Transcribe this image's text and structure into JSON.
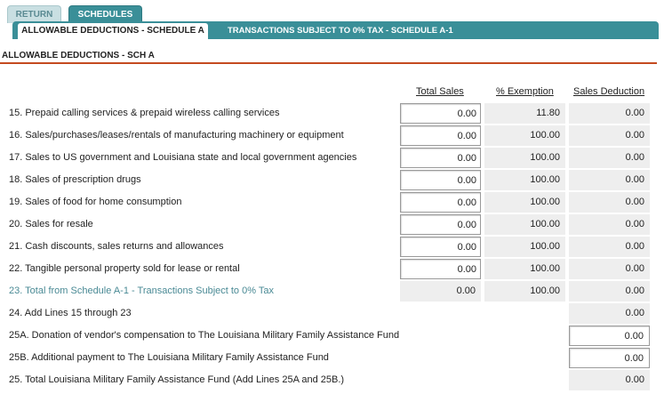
{
  "tabs": {
    "return_label": "RETURN",
    "schedules_label": "SCHEDULES"
  },
  "subtabs": {
    "active_label": "ALLOWABLE DEDUCTIONS - SCHEDULE A",
    "inactive_label": "TRANSACTIONS SUBJECT TO 0% TAX - SCHEDULE A-1"
  },
  "section_title": "ALLOWABLE DEDUCTIONS - SCH A",
  "columns": {
    "total_sales": "Total Sales",
    "pct_exemption": "% Exemption",
    "sales_deduction": "Sales Deduction"
  },
  "rows": [
    {
      "label": "15. Prepaid calling services & prepaid wireless calling services",
      "total": "0.00",
      "exemption": "11.80",
      "deduction": "0.00"
    },
    {
      "label": "16. Sales/purchases/leases/rentals of manufacturing machinery or equipment",
      "total": "0.00",
      "exemption": "100.00",
      "deduction": "0.00"
    },
    {
      "label": "17. Sales to US government and Louisiana state and local government agencies",
      "total": "0.00",
      "exemption": "100.00",
      "deduction": "0.00"
    },
    {
      "label": "18. Sales of prescription drugs",
      "total": "0.00",
      "exemption": "100.00",
      "deduction": "0.00"
    },
    {
      "label": "19. Sales of food for home consumption",
      "total": "0.00",
      "exemption": "100.00",
      "deduction": "0.00"
    },
    {
      "label": "20. Sales for resale",
      "total": "0.00",
      "exemption": "100.00",
      "deduction": "0.00"
    },
    {
      "label": "21. Cash discounts, sales returns and allowances",
      "total": "0.00",
      "exemption": "100.00",
      "deduction": "0.00"
    },
    {
      "label": "22. Tangible personal property sold for lease or rental",
      "total": "0.00",
      "exemption": "100.00",
      "deduction": "0.00"
    },
    {
      "label": "23. Total from Schedule A-1 - Transactions Subject to 0% Tax",
      "total": "0.00",
      "exemption": "100.00",
      "deduction": "0.00"
    },
    {
      "label": "24. Add Lines 15 through 23",
      "deduction": "0.00"
    },
    {
      "label": "25A. Donation of vendor's compensation to The Louisiana Military Family Assistance Fund",
      "deduction": "0.00"
    },
    {
      "label": "25B. Additional payment to The Louisiana Military Family Assistance Fund",
      "deduction": "0.00"
    },
    {
      "label": "25. Total Louisiana Military Family Assistance Fund (Add Lines 25A and 25B.)",
      "deduction": "0.00"
    }
  ],
  "colors": {
    "tab_teal": "#3a8f98",
    "rule_orange": "#c44a1f",
    "link_teal": "#4a8a95"
  }
}
